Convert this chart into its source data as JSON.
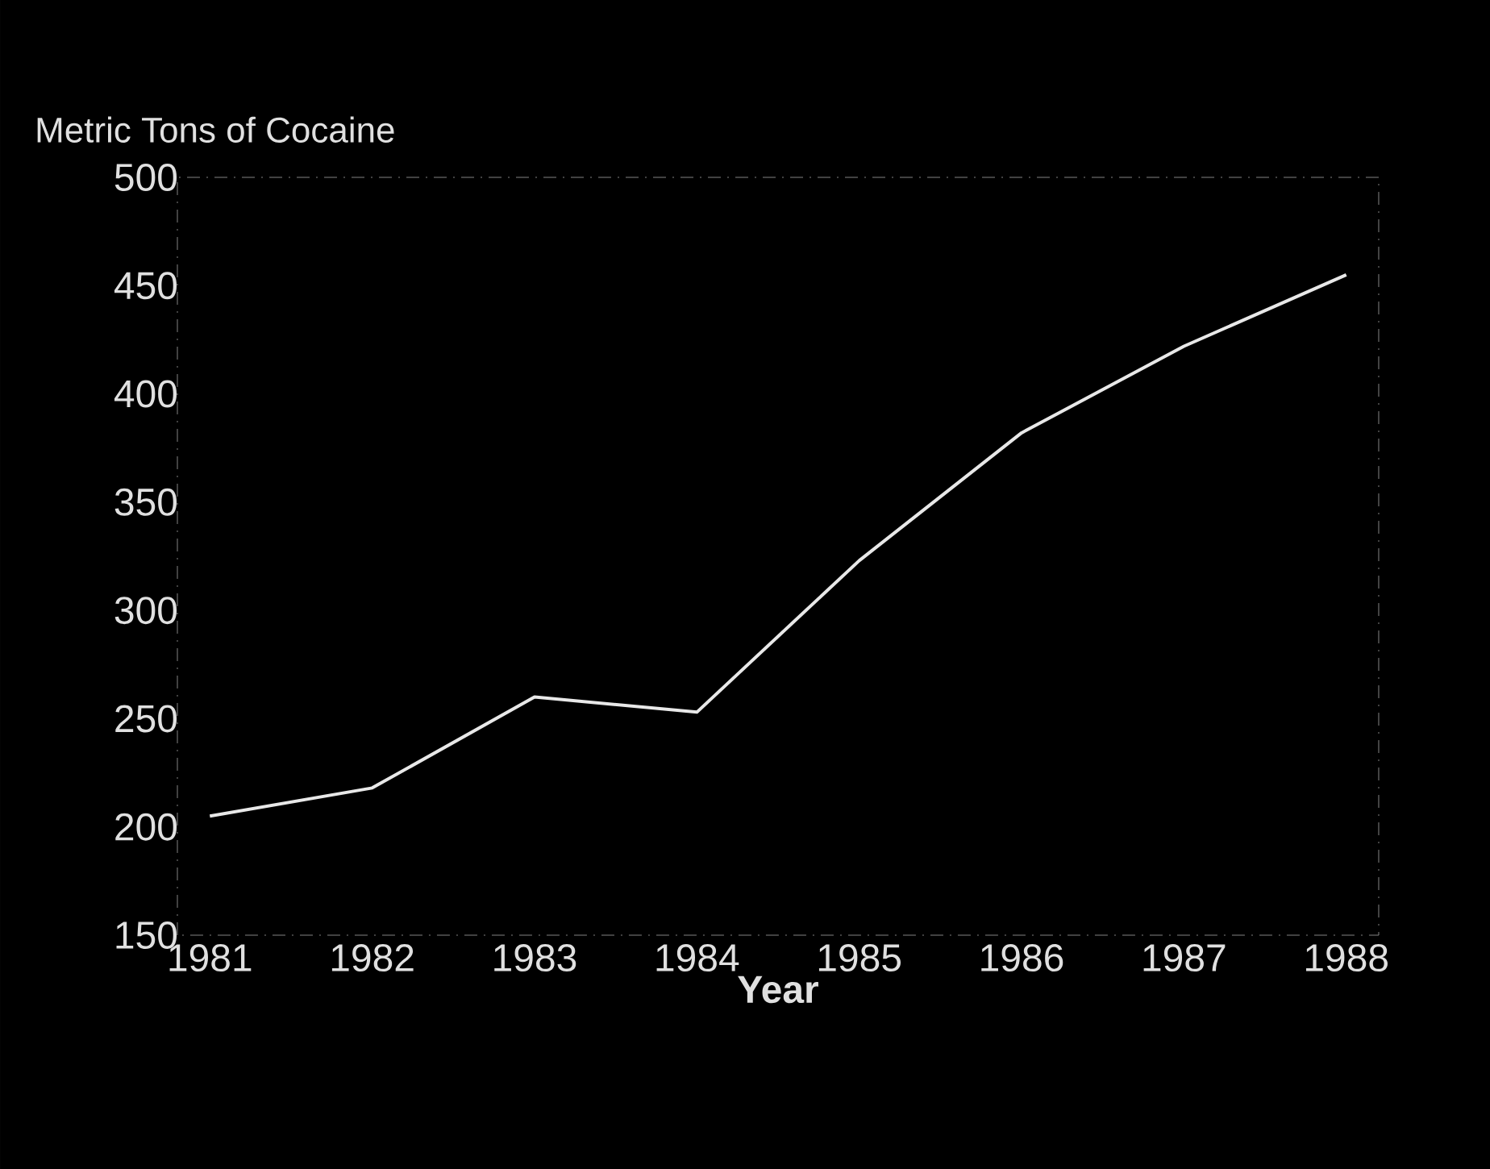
{
  "chart_data": {
    "type": "line",
    "ylabel": "Metric Tons of Cocaine",
    "xlabel": "Year",
    "x": [
      1981,
      1982,
      1983,
      1984,
      1985,
      1986,
      1987,
      1988
    ],
    "series": [
      {
        "color": "#e8e8e8",
        "values": [
          205,
          218,
          260,
          253,
          323,
          382,
          422,
          455
        ]
      }
    ],
    "xlim": [
      1980.8,
      1988.2
    ],
    "ylim": [
      150,
      500
    ],
    "xticks": [
      1981,
      1982,
      1983,
      1984,
      1985,
      1986,
      1987,
      1988
    ],
    "yticks": [
      150,
      200,
      250,
      300,
      350,
      400,
      450,
      500
    ],
    "marker": "none",
    "line_style": "solid"
  }
}
